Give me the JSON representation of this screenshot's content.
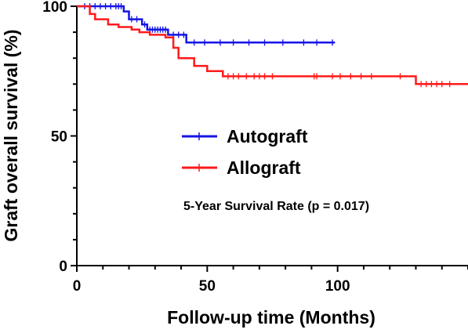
{
  "chart_data": {
    "type": "line",
    "subtype": "kaplan-meier",
    "xlabel": "Follow-up time (Months)",
    "ylabel": "Graft overall survival (%)",
    "xlim": [
      0,
      150
    ],
    "ylim": [
      0,
      100
    ],
    "x_ticks": [
      0,
      50,
      100
    ],
    "y_ticks": [
      0,
      50,
      100
    ],
    "grid": false,
    "legend_position": "center",
    "annotation": "5-Year Survival Rate (p = 0.017)",
    "series": [
      {
        "name": "Autograft",
        "color": "#1414e6",
        "steps": [
          [
            0,
            100
          ],
          [
            18,
            100
          ],
          [
            18,
            98
          ],
          [
            20,
            98
          ],
          [
            20,
            95
          ],
          [
            25,
            95
          ],
          [
            25,
            93
          ],
          [
            27,
            93
          ],
          [
            27,
            91
          ],
          [
            35,
            91
          ],
          [
            35,
            89
          ],
          [
            42,
            89
          ],
          [
            42,
            86
          ],
          [
            99,
            86
          ]
        ],
        "censor_times": [
          3,
          5,
          7,
          9,
          11,
          13,
          15,
          16,
          17,
          21,
          23,
          26,
          28,
          29,
          30,
          31,
          32,
          33,
          34,
          37,
          39,
          41,
          45,
          49,
          55,
          60,
          66,
          72,
          79,
          87,
          92,
          98
        ]
      },
      {
        "name": "Allograft",
        "color": "#ff1a1a",
        "steps": [
          [
            0,
            100
          ],
          [
            5,
            100
          ],
          [
            5,
            97
          ],
          [
            7,
            97
          ],
          [
            7,
            95
          ],
          [
            12,
            95
          ],
          [
            12,
            93
          ],
          [
            16,
            93
          ],
          [
            16,
            92
          ],
          [
            21,
            92
          ],
          [
            21,
            91
          ],
          [
            24,
            91
          ],
          [
            24,
            90
          ],
          [
            28,
            90
          ],
          [
            28,
            89
          ],
          [
            34,
            89
          ],
          [
            34,
            88
          ],
          [
            37,
            88
          ],
          [
            37,
            84
          ],
          [
            39,
            84
          ],
          [
            39,
            80
          ],
          [
            45,
            80
          ],
          [
            45,
            77
          ],
          [
            50,
            77
          ],
          [
            50,
            75
          ],
          [
            56,
            75
          ],
          [
            56,
            73
          ],
          [
            130,
            73
          ],
          [
            130,
            70
          ],
          [
            150,
            70
          ]
        ],
        "censor_times": [
          58,
          60,
          62,
          65,
          68,
          70,
          72,
          75,
          91,
          92,
          98,
          101,
          105,
          109,
          113,
          124,
          132,
          134,
          136,
          138,
          140,
          143
        ]
      }
    ]
  }
}
